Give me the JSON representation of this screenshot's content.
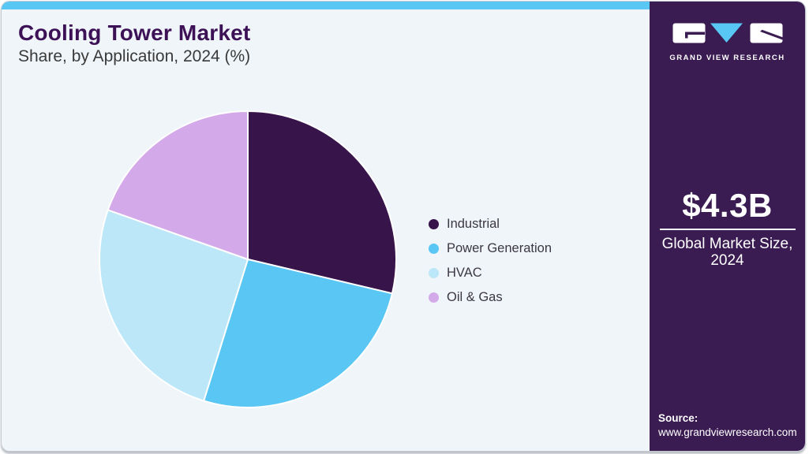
{
  "header": {
    "title": "Cooling Tower Market",
    "subtitle": "Share, by Application, 2024 (%)"
  },
  "chart_data": {
    "type": "pie",
    "title": "Cooling Tower Market Share, by Application, 2024 (%)",
    "unit": "percent",
    "start_angle_deg": 0,
    "direction": "clockwise",
    "legend_position": "right",
    "data_labels_shown": false,
    "segments": [
      {
        "label": "Industrial",
        "value": 28.7,
        "color": "#371449"
      },
      {
        "label": "Power Generation",
        "value": 26.1,
        "color": "#5ac6f3"
      },
      {
        "label": "HVAC",
        "value": 25.6,
        "color": "#bce7f8"
      },
      {
        "label": "Oil & Gas",
        "value": 19.6,
        "color": "#d4a9e9"
      }
    ]
  },
  "sidebar": {
    "logo": {
      "brand": "GRAND VIEW RESEARCH"
    },
    "market_size": {
      "value": "$4.3B",
      "label_line1": "Global Market Size,",
      "label_line2": "2024"
    },
    "source": {
      "label": "Source:",
      "url": "www.grandviewresearch.com"
    }
  },
  "colors": {
    "accent_blue": "#58c7f3",
    "sidebar_purple": "#3a1c52",
    "title_purple": "#3d1156",
    "card_background": "#eff5f9",
    "text_dark": "#3c3744"
  }
}
